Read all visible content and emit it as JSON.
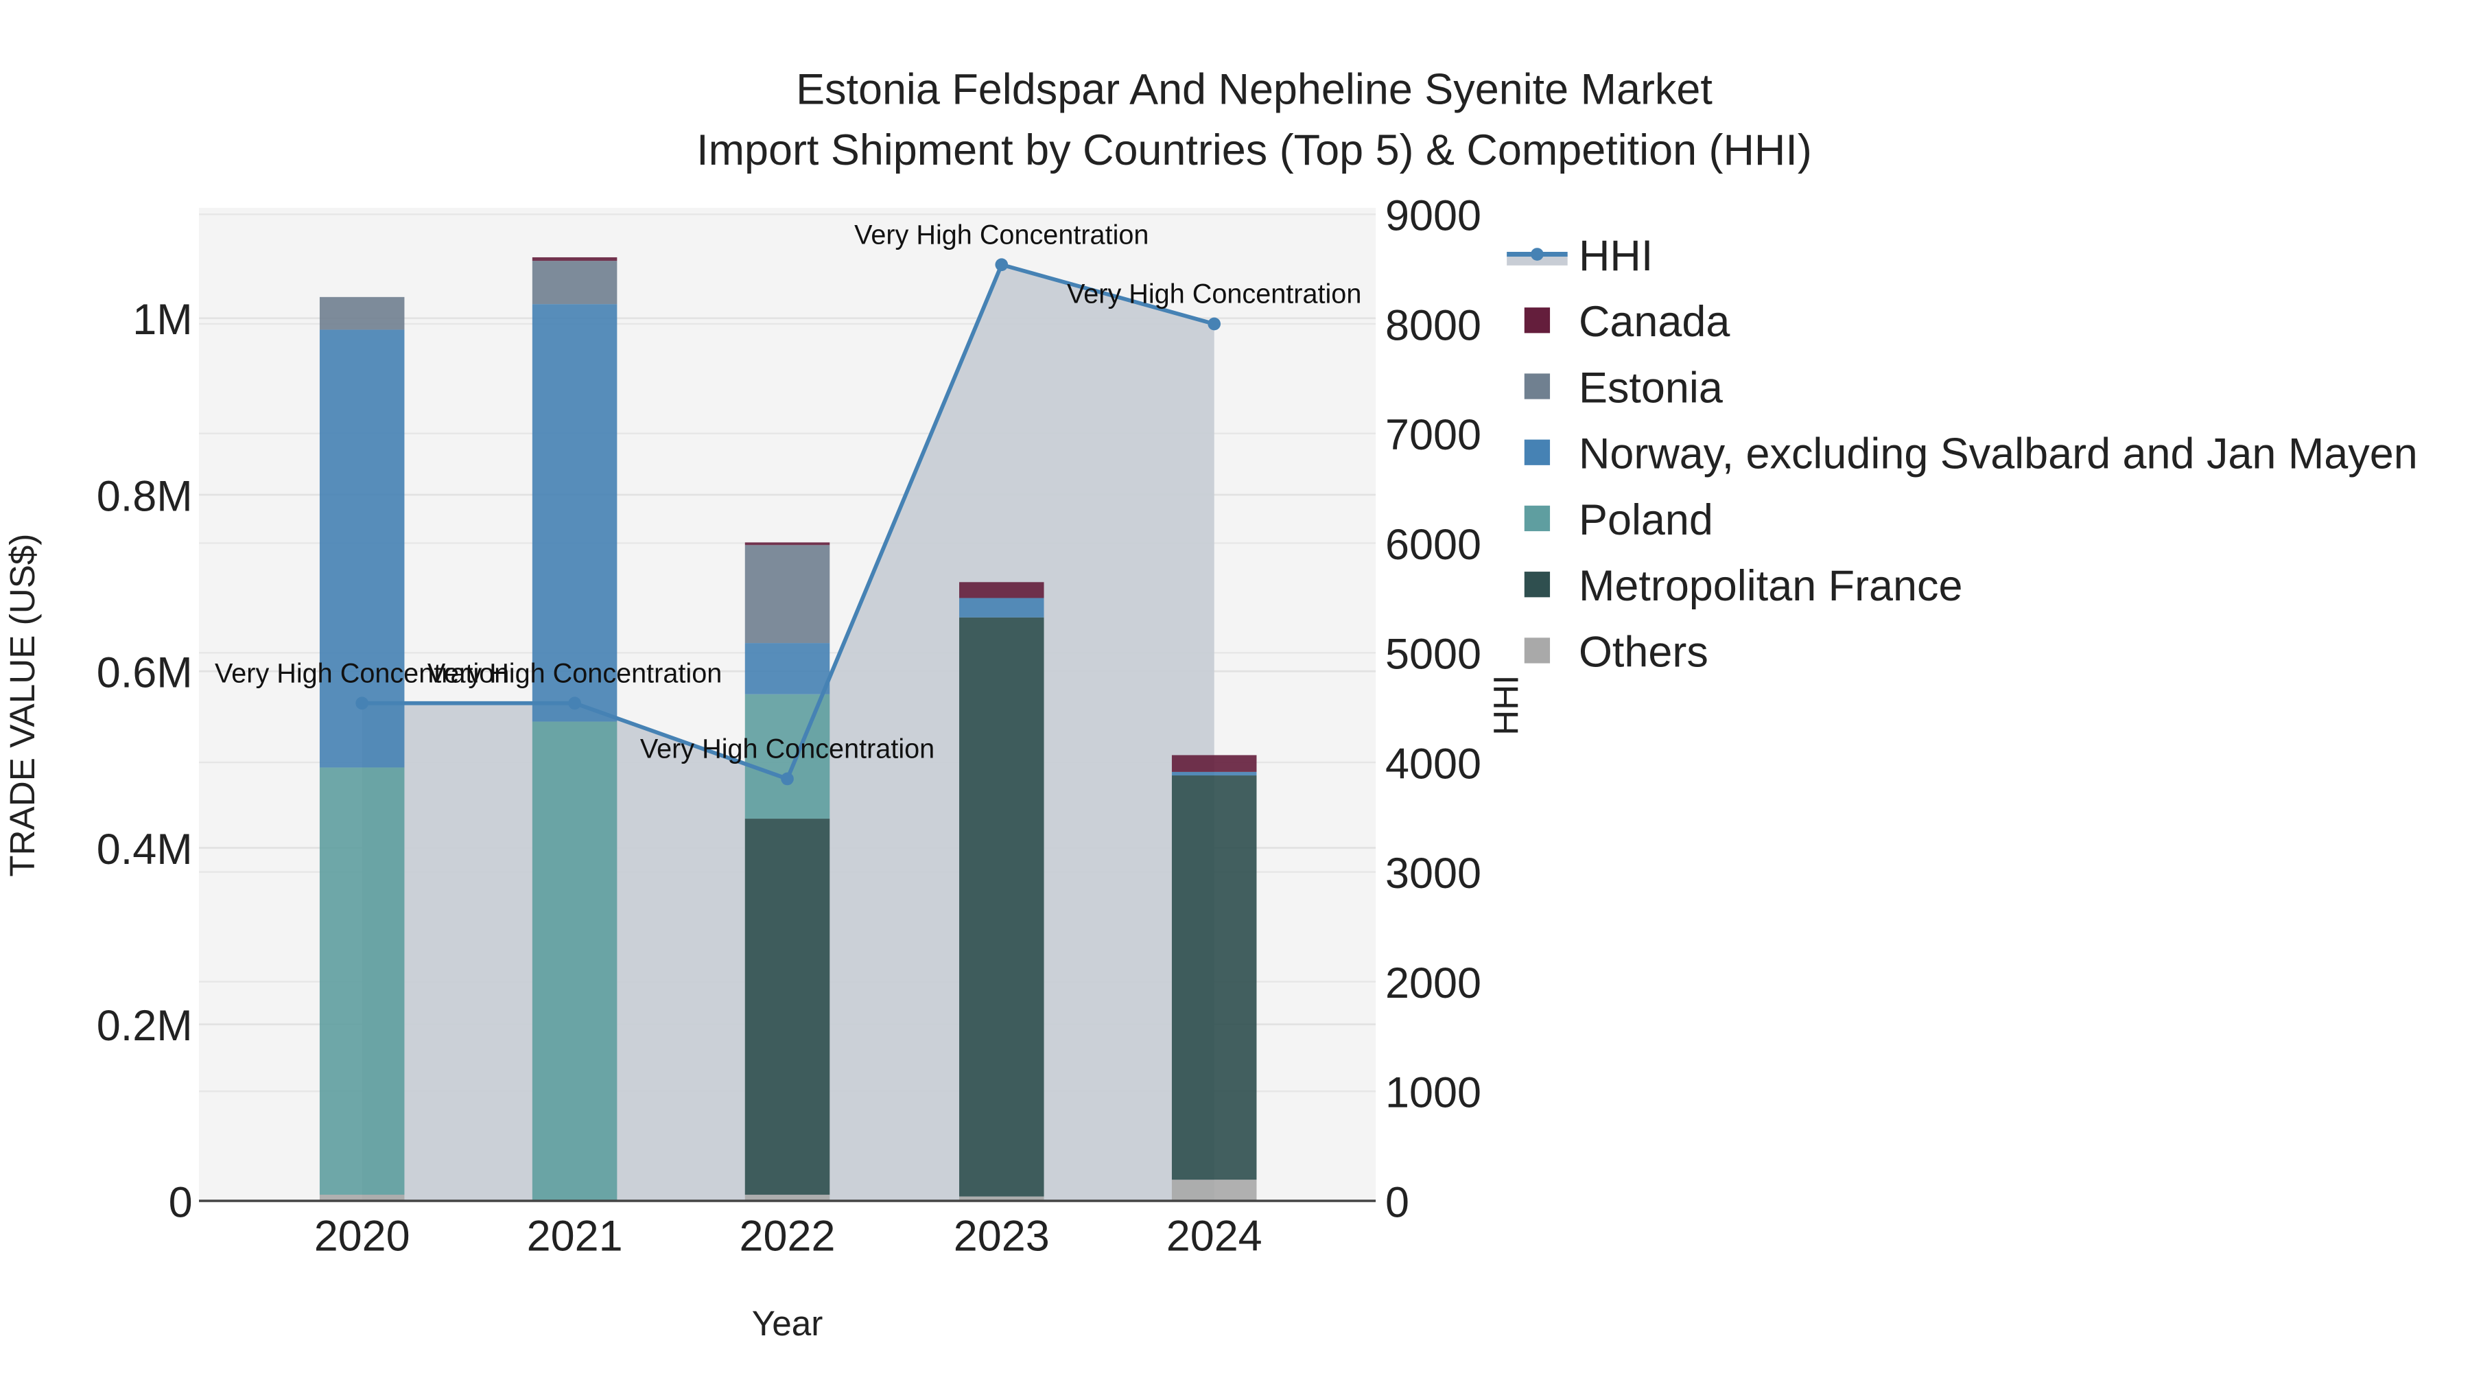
{
  "chart_data": {
    "type": "bar",
    "subtype": "stacked bar + line (secondary axis) with area fill",
    "title": "Estonia Feldspar And Nepheline Syenite Market",
    "subtitle": "Import Shipment by Countries (Top 5) & Competition (HHI)",
    "xlabel": "Year",
    "ylabel": "TRADE VALUE (US$)",
    "y2label": "HHI",
    "categories": [
      "2020",
      "2021",
      "2022",
      "2023",
      "2024"
    ],
    "ylim": [
      0,
      1120000
    ],
    "y_ticks": [
      0,
      200000,
      400000,
      600000,
      800000,
      1000000
    ],
    "y_tick_labels": [
      "0",
      "0.2M",
      "0.4M",
      "0.6M",
      "0.8M",
      "1M"
    ],
    "y2lim": [
      0,
      9000
    ],
    "y2_ticks": [
      0,
      1000,
      2000,
      3000,
      4000,
      5000,
      6000,
      7000,
      8000,
      9000
    ],
    "y2_tick_labels": [
      "0",
      "1000",
      "2000",
      "3000",
      "4000",
      "5000",
      "6000",
      "7000",
      "8000",
      "9000"
    ],
    "grid": true,
    "legend_position": "right",
    "series": [
      {
        "name": "Others",
        "color": "#a9a9a9",
        "values": [
          7000,
          0,
          7000,
          5000,
          24000
        ]
      },
      {
        "name": "Metropolitan France",
        "color": "#2f4f4f",
        "values": [
          0,
          0,
          426000,
          656000,
          458000
        ]
      },
      {
        "name": "Poland",
        "color": "#5f9ea0",
        "values": [
          484000,
          543000,
          141000,
          0,
          0
        ]
      },
      {
        "name": "Norway, excluding Svalbard and Jan Mayen",
        "color": "#4682b4",
        "values": [
          496000,
          473000,
          58000,
          22000,
          4000
        ]
      },
      {
        "name": "Estonia",
        "color": "#708090",
        "values": [
          37000,
          49000,
          111000,
          0,
          0
        ]
      },
      {
        "name": "Canada",
        "color": "#641e3c",
        "values": [
          0,
          4000,
          3000,
          18000,
          19000
        ]
      }
    ],
    "line_series": {
      "name": "HHI",
      "axis": "y2",
      "color": "#4682b4",
      "fill_color": "#c8cdd5",
      "values": [
        4540,
        4540,
        3850,
        8540,
        8000
      ],
      "annotations": [
        "Very High Concentration",
        "Very High Concentration",
        "Very High Concentration",
        "Very High Concentration",
        "Very High Concentration"
      ]
    }
  },
  "legend": {
    "items": [
      {
        "label": "HHI",
        "type": "line"
      },
      {
        "label": "Canada",
        "color": "#641e3c"
      },
      {
        "label": "Estonia",
        "color": "#708090"
      },
      {
        "label": "Norway, excluding Svalbard and Jan Mayen",
        "color": "#4682b4"
      },
      {
        "label": "Poland",
        "color": "#5f9ea0"
      },
      {
        "label": "Metropolitan France",
        "color": "#2f4f4f"
      },
      {
        "label": "Others",
        "color": "#a9a9a9"
      }
    ]
  }
}
